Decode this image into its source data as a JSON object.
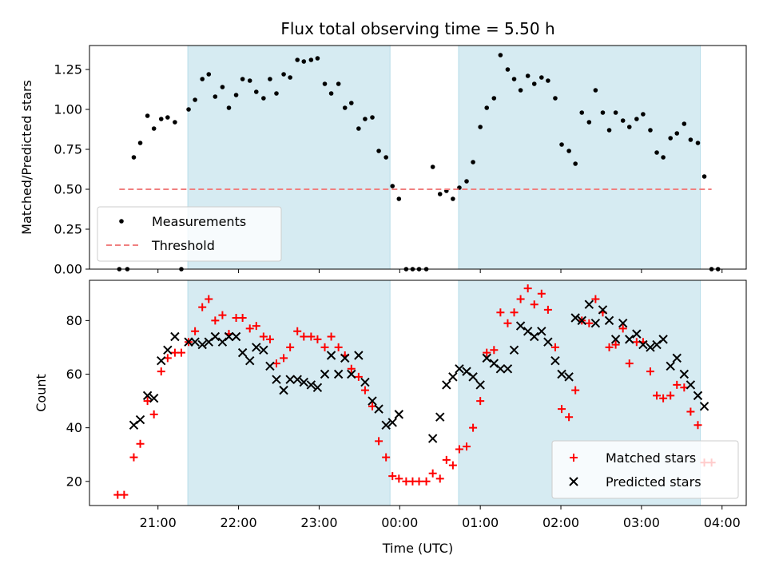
{
  "chart_data": [
    {
      "type": "scatter",
      "title": "Flux total observing time = 5.50 h",
      "xlabel": "",
      "ylabel": "Matched/Predicted stars",
      "x_unit": "hours since 00:00 UTC (negative = before midnight)",
      "xlim": [
        -3.85,
        4.3
      ],
      "ylim": [
        0,
        1.4
      ],
      "yticks": [
        "0.00",
        "0.25",
        "0.50",
        "0.75",
        "1.00",
        "1.25"
      ],
      "shaded_intervals": [
        [
          -2.63,
          -0.12
        ],
        [
          0.73,
          3.73
        ]
      ],
      "legend": {
        "placement": "lower-left",
        "entries": [
          "Measurements",
          "Threshold"
        ]
      },
      "series": [
        {
          "name": "Measurements",
          "style": "dot",
          "color": "#000000",
          "points": [
            [
              -3.48,
              0
            ],
            [
              -3.38,
              0
            ],
            [
              -3.3,
              0.7
            ],
            [
              -3.22,
              0.79
            ],
            [
              -3.13,
              0.96
            ],
            [
              -3.05,
              0.88
            ],
            [
              -2.96,
              0.94
            ],
            [
              -2.88,
              0.95
            ],
            [
              -2.79,
              0.92
            ],
            [
              -2.71,
              0
            ],
            [
              -2.62,
              1.0
            ],
            [
              -2.54,
              1.06
            ],
            [
              -2.45,
              1.19
            ],
            [
              -2.37,
              1.22
            ],
            [
              -2.29,
              1.08
            ],
            [
              -2.2,
              1.14
            ],
            [
              -2.12,
              1.01
            ],
            [
              -2.03,
              1.09
            ],
            [
              -1.95,
              1.19
            ],
            [
              -1.86,
              1.18
            ],
            [
              -1.78,
              1.11
            ],
            [
              -1.69,
              1.07
            ],
            [
              -1.61,
              1.19
            ],
            [
              -1.53,
              1.1
            ],
            [
              -1.44,
              1.22
            ],
            [
              -1.36,
              1.2
            ],
            [
              -1.27,
              1.31
            ],
            [
              -1.19,
              1.3
            ],
            [
              -1.1,
              1.31
            ],
            [
              -1.02,
              1.32
            ],
            [
              -0.93,
              1.16
            ],
            [
              -0.85,
              1.1
            ],
            [
              -0.76,
              1.16
            ],
            [
              -0.68,
              1.01
            ],
            [
              -0.6,
              1.04
            ],
            [
              -0.51,
              0.88
            ],
            [
              -0.43,
              0.94
            ],
            [
              -0.34,
              0.95
            ],
            [
              -0.26,
              0.74
            ],
            [
              -0.17,
              0.7
            ],
            [
              -0.09,
              0.52
            ],
            [
              -0.01,
              0.44
            ],
            [
              0.08,
              0
            ],
            [
              0.16,
              0
            ],
            [
              0.24,
              0
            ],
            [
              0.33,
              0
            ],
            [
              0.41,
              0.64
            ],
            [
              0.5,
              0.47
            ],
            [
              0.58,
              0.49
            ],
            [
              0.66,
              0.44
            ],
            [
              0.74,
              0.51
            ],
            [
              0.83,
              0.55
            ],
            [
              0.91,
              0.67
            ],
            [
              1.0,
              0.89
            ],
            [
              1.08,
              1.01
            ],
            [
              1.17,
              1.07
            ],
            [
              1.25,
              1.34
            ],
            [
              1.34,
              1.25
            ],
            [
              1.42,
              1.19
            ],
            [
              1.5,
              1.12
            ],
            [
              1.59,
              1.21
            ],
            [
              1.67,
              1.16
            ],
            [
              1.76,
              1.2
            ],
            [
              1.84,
              1.18
            ],
            [
              1.93,
              1.07
            ],
            [
              2.01,
              0.78
            ],
            [
              2.1,
              0.74
            ],
            [
              2.18,
              0.66
            ],
            [
              2.26,
              0.98
            ],
            [
              2.35,
              0.92
            ],
            [
              2.43,
              1.12
            ],
            [
              2.52,
              0.98
            ],
            [
              2.6,
              0.87
            ],
            [
              2.68,
              0.98
            ],
            [
              2.77,
              0.93
            ],
            [
              2.85,
              0.89
            ],
            [
              2.94,
              0.94
            ],
            [
              3.02,
              0.97
            ],
            [
              3.11,
              0.87
            ],
            [
              3.19,
              0.73
            ],
            [
              3.27,
              0.7
            ],
            [
              3.36,
              0.82
            ],
            [
              3.44,
              0.85
            ],
            [
              3.53,
              0.91
            ],
            [
              3.61,
              0.81
            ],
            [
              3.7,
              0.79
            ],
            [
              3.78,
              0.58
            ],
            [
              3.87,
              0
            ],
            [
              3.95,
              0
            ]
          ]
        },
        {
          "name": "Threshold",
          "style": "dashed-line",
          "color": "#f08080",
          "points": [
            [
              -3.48,
              0.5
            ],
            [
              3.87,
              0.5
            ]
          ]
        }
      ]
    },
    {
      "type": "scatter",
      "title": "",
      "xlabel": "Time (UTC)",
      "ylabel": "Count",
      "x_unit": "hours since 00:00 UTC (negative = before midnight)",
      "xlim": [
        -3.85,
        4.3
      ],
      "ylim": [
        11,
        95
      ],
      "yticks": [
        "20",
        "40",
        "60",
        "80"
      ],
      "xticks": [
        {
          "value": -3,
          "label": "21:00"
        },
        {
          "value": -2,
          "label": "22:00"
        },
        {
          "value": -1,
          "label": "23:00"
        },
        {
          "value": 0,
          "label": "00:00"
        },
        {
          "value": 1,
          "label": "01:00"
        },
        {
          "value": 2,
          "label": "02:00"
        },
        {
          "value": 3,
          "label": "03:00"
        },
        {
          "value": 4,
          "label": "04:00"
        }
      ],
      "shaded_intervals": [
        [
          -2.63,
          -0.12
        ],
        [
          0.73,
          3.73
        ]
      ],
      "legend": {
        "placement": "lower-right",
        "entries": [
          "Matched stars",
          "Predicted stars"
        ]
      },
      "series": [
        {
          "name": "Matched stars",
          "style": "plus",
          "color": "#ff0000",
          "points": [
            [
              -3.5,
              15
            ],
            [
              -3.42,
              15
            ],
            [
              -3.3,
              29
            ],
            [
              -3.22,
              34
            ],
            [
              -3.13,
              50
            ],
            [
              -3.05,
              45
            ],
            [
              -2.96,
              61
            ],
            [
              -2.88,
              66
            ],
            [
              -2.79,
              68
            ],
            [
              -2.71,
              68
            ],
            [
              -2.62,
              72
            ],
            [
              -2.54,
              76
            ],
            [
              -2.45,
              85
            ],
            [
              -2.37,
              88
            ],
            [
              -2.29,
              80
            ],
            [
              -2.2,
              82
            ],
            [
              -2.12,
              75
            ],
            [
              -2.03,
              81
            ],
            [
              -1.95,
              81
            ],
            [
              -1.86,
              77
            ],
            [
              -1.78,
              78
            ],
            [
              -1.69,
              74
            ],
            [
              -1.61,
              73
            ],
            [
              -1.53,
              64
            ],
            [
              -1.44,
              66
            ],
            [
              -1.36,
              70
            ],
            [
              -1.27,
              76
            ],
            [
              -1.19,
              74
            ],
            [
              -1.1,
              74
            ],
            [
              -1.02,
              73
            ],
            [
              -0.93,
              70
            ],
            [
              -0.85,
              74
            ],
            [
              -0.76,
              70
            ],
            [
              -0.68,
              67
            ],
            [
              -0.6,
              62
            ],
            [
              -0.51,
              59
            ],
            [
              -0.43,
              54
            ],
            [
              -0.34,
              48
            ],
            [
              -0.26,
              35
            ],
            [
              -0.17,
              29
            ],
            [
              -0.09,
              22
            ],
            [
              -0.01,
              21
            ],
            [
              0.08,
              20
            ],
            [
              0.16,
              20
            ],
            [
              0.24,
              20
            ],
            [
              0.33,
              20
            ],
            [
              0.41,
              23
            ],
            [
              0.5,
              21
            ],
            [
              0.58,
              28
            ],
            [
              0.66,
              26
            ],
            [
              0.74,
              32
            ],
            [
              0.83,
              33
            ],
            [
              0.91,
              40
            ],
            [
              1.0,
              50
            ],
            [
              1.08,
              68
            ],
            [
              1.17,
              69
            ],
            [
              1.25,
              83
            ],
            [
              1.34,
              79
            ],
            [
              1.42,
              83
            ],
            [
              1.5,
              88
            ],
            [
              1.59,
              92
            ],
            [
              1.67,
              86
            ],
            [
              1.76,
              90
            ],
            [
              1.84,
              84
            ],
            [
              1.93,
              70
            ],
            [
              2.01,
              47
            ],
            [
              2.1,
              44
            ],
            [
              2.18,
              54
            ],
            [
              2.26,
              80
            ],
            [
              2.35,
              79
            ],
            [
              2.43,
              88
            ],
            [
              2.52,
              83
            ],
            [
              2.6,
              70
            ],
            [
              2.68,
              71
            ],
            [
              2.77,
              77
            ],
            [
              2.85,
              64
            ],
            [
              2.94,
              72
            ],
            [
              3.02,
              72
            ],
            [
              3.11,
              61
            ],
            [
              3.19,
              52
            ],
            [
              3.27,
              51
            ],
            [
              3.36,
              52
            ],
            [
              3.44,
              56
            ],
            [
              3.53,
              55
            ],
            [
              3.61,
              46
            ],
            [
              3.7,
              41
            ],
            [
              3.78,
              27
            ],
            [
              3.87,
              27
            ]
          ]
        },
        {
          "name": "Predicted stars",
          "style": "x",
          "color": "#000000",
          "points": [
            [
              -3.3,
              41
            ],
            [
              -3.22,
              43
            ],
            [
              -3.13,
              52
            ],
            [
              -3.05,
              51
            ],
            [
              -2.96,
              65
            ],
            [
              -2.88,
              69
            ],
            [
              -2.79,
              74
            ],
            [
              -2.62,
              72
            ],
            [
              -2.54,
              72
            ],
            [
              -2.45,
              71
            ],
            [
              -2.37,
              72
            ],
            [
              -2.29,
              74
            ],
            [
              -2.2,
              72
            ],
            [
              -2.12,
              74
            ],
            [
              -2.03,
              74
            ],
            [
              -1.95,
              68
            ],
            [
              -1.86,
              65
            ],
            [
              -1.78,
              70
            ],
            [
              -1.69,
              69
            ],
            [
              -1.61,
              63
            ],
            [
              -1.53,
              58
            ],
            [
              -1.44,
              54
            ],
            [
              -1.36,
              58
            ],
            [
              -1.27,
              58
            ],
            [
              -1.19,
              57
            ],
            [
              -1.1,
              56
            ],
            [
              -1.02,
              55
            ],
            [
              -0.93,
              60
            ],
            [
              -0.85,
              67
            ],
            [
              -0.76,
              60
            ],
            [
              -0.68,
              66
            ],
            [
              -0.6,
              60
            ],
            [
              -0.51,
              67
            ],
            [
              -0.43,
              57
            ],
            [
              -0.34,
              50
            ],
            [
              -0.26,
              47
            ],
            [
              -0.17,
              41
            ],
            [
              -0.09,
              42
            ],
            [
              -0.01,
              45
            ],
            [
              0.41,
              36
            ],
            [
              0.5,
              44
            ],
            [
              0.58,
              56
            ],
            [
              0.66,
              59
            ],
            [
              0.74,
              62
            ],
            [
              0.83,
              61
            ],
            [
              0.91,
              59
            ],
            [
              1.0,
              56
            ],
            [
              1.08,
              66
            ],
            [
              1.17,
              64
            ],
            [
              1.25,
              62
            ],
            [
              1.34,
              62
            ],
            [
              1.42,
              69
            ],
            [
              1.5,
              78
            ],
            [
              1.59,
              76
            ],
            [
              1.67,
              74
            ],
            [
              1.76,
              76
            ],
            [
              1.84,
              72
            ],
            [
              1.93,
              65
            ],
            [
              2.01,
              60
            ],
            [
              2.1,
              59
            ],
            [
              2.18,
              81
            ],
            [
              2.26,
              80
            ],
            [
              2.35,
              86
            ],
            [
              2.43,
              79
            ],
            [
              2.52,
              84
            ],
            [
              2.6,
              80
            ],
            [
              2.68,
              73
            ],
            [
              2.77,
              79
            ],
            [
              2.85,
              73
            ],
            [
              2.94,
              75
            ],
            [
              3.02,
              71
            ],
            [
              3.11,
              70
            ],
            [
              3.19,
              71
            ],
            [
              3.27,
              73
            ],
            [
              3.36,
              63
            ],
            [
              3.44,
              66
            ],
            [
              3.53,
              60
            ],
            [
              3.61,
              56
            ],
            [
              3.7,
              52
            ],
            [
              3.78,
              48
            ]
          ]
        }
      ]
    }
  ]
}
